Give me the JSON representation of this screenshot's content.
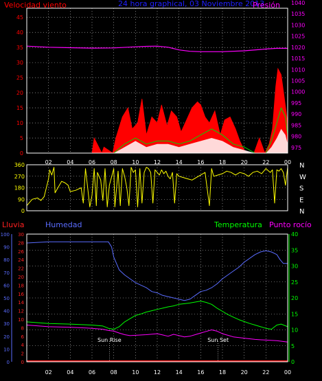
{
  "colors": {
    "bg": "#000000",
    "frame": "#ffffff",
    "grid": "#cfcfcf",
    "wind_speed": "#ff0000",
    "wind_gust_green": "#00d800",
    "wind_fill": "#ffffff",
    "pressure": "#ff00ff",
    "direction": "#ffff00",
    "rain": "#ff2020",
    "humidity": "#5a6cff",
    "temperature": "#00ff00",
    "dewpoint": "#ff00ff",
    "title": "#2020ff",
    "sun_marker": "#ffffff"
  },
  "chart_data": [
    {
      "type": "line",
      "title": "24 hora graphical, 03 Noviembre 2013",
      "left_label": "Velocidad viento",
      "right_label": "Presión",
      "x_ticks": [
        "02",
        "04",
        "06",
        "08",
        "10",
        "12",
        "14",
        "16",
        "18",
        "20",
        "22",
        "00"
      ],
      "y_left_ticks": [
        "0",
        "5",
        "10",
        "15",
        "20",
        "25",
        "30",
        "35",
        "40",
        "45"
      ],
      "y_right_ticks": [
        "975",
        "980",
        "985",
        "990",
        "995",
        "1000",
        "1005",
        "1010",
        "1015",
        "1020",
        "1025",
        "1030",
        "1035",
        "1040"
      ],
      "y_left_range": [
        0,
        48
      ],
      "y_right_range": [
        972.5,
        1037.5
      ],
      "x_range_hours": [
        0,
        24
      ],
      "grid": "dotted",
      "series": [
        {
          "name": "Presión",
          "x": [
            0,
            2,
            4,
            6,
            8,
            10,
            11,
            12,
            13,
            14,
            15,
            16,
            18,
            20,
            22,
            23,
            24
          ],
          "values": [
            1020.5,
            1020,
            1019.8,
            1019.6,
            1019.7,
            1020.2,
            1020.4,
            1020.5,
            1020,
            1018.8,
            1018.2,
            1018,
            1018,
            1018.4,
            1019.2,
            1019.5,
            1019.5
          ]
        },
        {
          "name": "wind_speed_max",
          "x": [
            0,
            6,
            6.2,
            6.9,
            7.1,
            7.9,
            8.2,
            8.8,
            9.3,
            9.7,
            10.2,
            10.6,
            11,
            11.5,
            12,
            12.4,
            12.9,
            13.3,
            13.8,
            14.2,
            14.7,
            15.2,
            15.7,
            16,
            16.4,
            16.8,
            17.3,
            17.8,
            18.2,
            18.7,
            19.2,
            19.6,
            20,
            20.4,
            20.9,
            21.4,
            21.9,
            22.3,
            22.6,
            22.9,
            23.1,
            23.4,
            23.7,
            24
          ],
          "values": [
            0,
            0,
            5,
            0,
            2,
            0,
            5,
            12,
            15,
            8,
            10,
            18,
            6,
            12,
            10,
            16,
            9,
            14,
            12,
            7,
            11,
            15,
            17,
            16,
            12,
            10,
            14,
            6,
            11,
            12,
            8,
            4,
            1,
            0,
            0,
            5,
            0,
            3,
            8,
            22,
            28,
            26,
            18,
            10
          ]
        },
        {
          "name": "wind_speed_green",
          "x": [
            0,
            8,
            9,
            10,
            11,
            12,
            13,
            14,
            15,
            16,
            17,
            18,
            19,
            20,
            21,
            22,
            22.5,
            23,
            23.4,
            23.8,
            24
          ],
          "values": [
            0,
            0,
            3,
            5,
            3,
            4,
            4,
            3,
            4,
            6,
            8,
            6,
            3,
            2,
            0,
            0,
            4,
            10,
            15,
            12,
            6
          ]
        },
        {
          "name": "wind_speed_avg",
          "x": [
            0,
            8,
            9,
            10,
            11,
            12,
            13,
            14,
            15,
            16,
            17,
            18,
            19,
            20,
            21,
            22,
            22.5,
            23,
            23.4,
            23.8,
            24
          ],
          "values": [
            0,
            0,
            2,
            4,
            2,
            3,
            3,
            2,
            3,
            4,
            5,
            4,
            2,
            1,
            0,
            0,
            2,
            5,
            8,
            6,
            3
          ]
        }
      ]
    },
    {
      "type": "line",
      "right_labels": [
        "N",
        "W",
        "S",
        "E",
        "N"
      ],
      "y_ticks": [
        "0",
        "90",
        "180",
        "270",
        "360"
      ],
      "y_range": [
        0,
        360
      ],
      "x_range_hours": [
        0,
        24
      ],
      "grid": "dotted",
      "series": [
        {
          "name": "direccion",
          "x": [
            0,
            0.5,
            1,
            1.3,
            1.6,
            2,
            2.1,
            2.3,
            2.5,
            2.6,
            3,
            3.2,
            3.5,
            3.8,
            4,
            4.5,
            5,
            5.2,
            5.4,
            5.6,
            5.8,
            6,
            6.2,
            6.4,
            6.5,
            6.8,
            7,
            7.2,
            7.4,
            7.6,
            8,
            8.1,
            8.4,
            8.6,
            8.8,
            9,
            9.2,
            9.4,
            9.6,
            9.8,
            10,
            10.2,
            10.4,
            10.6,
            10.8,
            11,
            11.2,
            11.4,
            11.6,
            11.8,
            12,
            12.2,
            12.4,
            12.6,
            12.8,
            13,
            13.2,
            13.4,
            13.6,
            13.8,
            14,
            14.4,
            14.8,
            15.2,
            15.6,
            16,
            16.4,
            16.8,
            17,
            17.2,
            17.6,
            18,
            18.4,
            18.8,
            19.2,
            19.6,
            20,
            20.4,
            20.8,
            21.2,
            21.6,
            22,
            22.4,
            22.6,
            22.8,
            23,
            23.2,
            23.4,
            23.6,
            23.8,
            24
          ],
          "values": [
            40,
            90,
            100,
            80,
            110,
            250,
            320,
            280,
            340,
            140,
            200,
            230,
            220,
            200,
            150,
            160,
            180,
            60,
            330,
            180,
            30,
            120,
            330,
            40,
            300,
            240,
            80,
            330,
            30,
            200,
            330,
            30,
            310,
            40,
            330,
            270,
            180,
            40,
            340,
            300,
            320,
            30,
            330,
            60,
            300,
            340,
            330,
            300,
            60,
            320,
            300,
            280,
            320,
            290,
            310,
            270,
            250,
            300,
            60,
            290,
            270,
            260,
            250,
            240,
            260,
            280,
            300,
            40,
            330,
            270,
            280,
            290,
            310,
            300,
            280,
            300,
            290,
            270,
            300,
            310,
            290,
            330,
            300,
            320,
            60,
            320,
            310,
            330,
            300,
            200,
            340
          ]
        }
      ]
    },
    {
      "type": "line",
      "left_label_rain": "Lluvia",
      "left_label_humidity": "Humedad",
      "right_label_temp": "Temperatura",
      "right_label_dew": "Punto rocío",
      "y_rain_ticks": [
        "0",
        "2",
        "4",
        "6",
        "8",
        "10",
        "12",
        "14",
        "16",
        "18",
        "20",
        "22",
        "24",
        "26",
        "28",
        "30"
      ],
      "y_humidity_ticks": [
        "0",
        "10",
        "20",
        "30",
        "40",
        "50",
        "60",
        "70",
        "80",
        "90",
        "100"
      ],
      "y_temp_ticks": [
        "0",
        "5",
        "10",
        "15",
        "20",
        "25",
        "30",
        "35",
        "40"
      ],
      "y_humidity_range": [
        0,
        100
      ],
      "y_temp_range": [
        0,
        40
      ],
      "x_range_hours": [
        0,
        24
      ],
      "sun_rise_label": "Sun Rise",
      "sun_set_label": "Sun Set",
      "sun_rise_hour": 7.6,
      "sun_set_hour": 17.6,
      "grid": "dotted",
      "series": [
        {
          "name": "Humedad",
          "x": [
            0,
            2,
            4,
            6,
            7,
            7.5,
            7.8,
            8,
            8.5,
            9,
            9.5,
            10,
            10.5,
            11,
            11.5,
            12,
            12.5,
            13,
            13.5,
            14,
            14.5,
            15,
            15.5,
            16,
            16.5,
            17,
            17.5,
            18,
            18.5,
            19,
            19.5,
            20,
            20.5,
            21,
            21.5,
            22,
            22.5,
            23,
            23.3,
            23.6,
            24
          ],
          "values": [
            93,
            94,
            94,
            94,
            94,
            94,
            90,
            82,
            72,
            68,
            65,
            62,
            60,
            58,
            55,
            54,
            52,
            51,
            50,
            49,
            48,
            49,
            52,
            55,
            56,
            58,
            61,
            65,
            68,
            71,
            74,
            78,
            81,
            84,
            86,
            87,
            86,
            84,
            80,
            77,
            77
          ]
        },
        {
          "name": "Temperatura",
          "x": [
            0,
            2,
            4,
            6,
            7,
            7.5,
            8,
            8.5,
            9,
            9.5,
            10,
            10.5,
            11,
            11.5,
            12,
            12.5,
            13,
            13.5,
            14,
            14.5,
            15,
            15.5,
            16,
            16.5,
            17,
            17.5,
            18,
            18.5,
            19,
            19.5,
            20,
            20.5,
            21,
            21.5,
            22,
            22.5,
            23,
            23.4,
            23.7,
            24
          ],
          "values": [
            12.5,
            12,
            11.8,
            11.5,
            11.2,
            10.5,
            10.2,
            11,
            12.5,
            13.5,
            14.5,
            15,
            15.6,
            16,
            16.4,
            16.8,
            17.2,
            17.5,
            18,
            18.2,
            18.4,
            18.7,
            19,
            18.6,
            18,
            16.8,
            15.8,
            14.8,
            14,
            13.2,
            12.6,
            12,
            11.5,
            11,
            10.5,
            10.2,
            11.5,
            11.8,
            11.4,
            11
          ]
        },
        {
          "name": "Punto rocío",
          "x": [
            0,
            2,
            4,
            6,
            7,
            7.5,
            8,
            8.5,
            9,
            9.5,
            10,
            11,
            12,
            12.5,
            13,
            13.5,
            14,
            14.5,
            15,
            15.5,
            16,
            16.5,
            17,
            17.5,
            18,
            18.5,
            19,
            20,
            21,
            22,
            23,
            24
          ],
          "values": [
            11.5,
            11,
            10.8,
            10.5,
            10.2,
            9.8,
            9.6,
            9,
            8.5,
            8.2,
            8.3,
            8.5,
            8.8,
            8.4,
            8,
            8.6,
            8.2,
            7.8,
            8,
            8.5,
            9,
            9.5,
            10,
            9.6,
            8.8,
            8.3,
            7.8,
            7.4,
            7,
            6.8,
            6.6,
            6.2
          ]
        },
        {
          "name": "Lluvia",
          "x": [
            0,
            24
          ],
          "values": [
            0,
            0
          ]
        }
      ]
    }
  ]
}
